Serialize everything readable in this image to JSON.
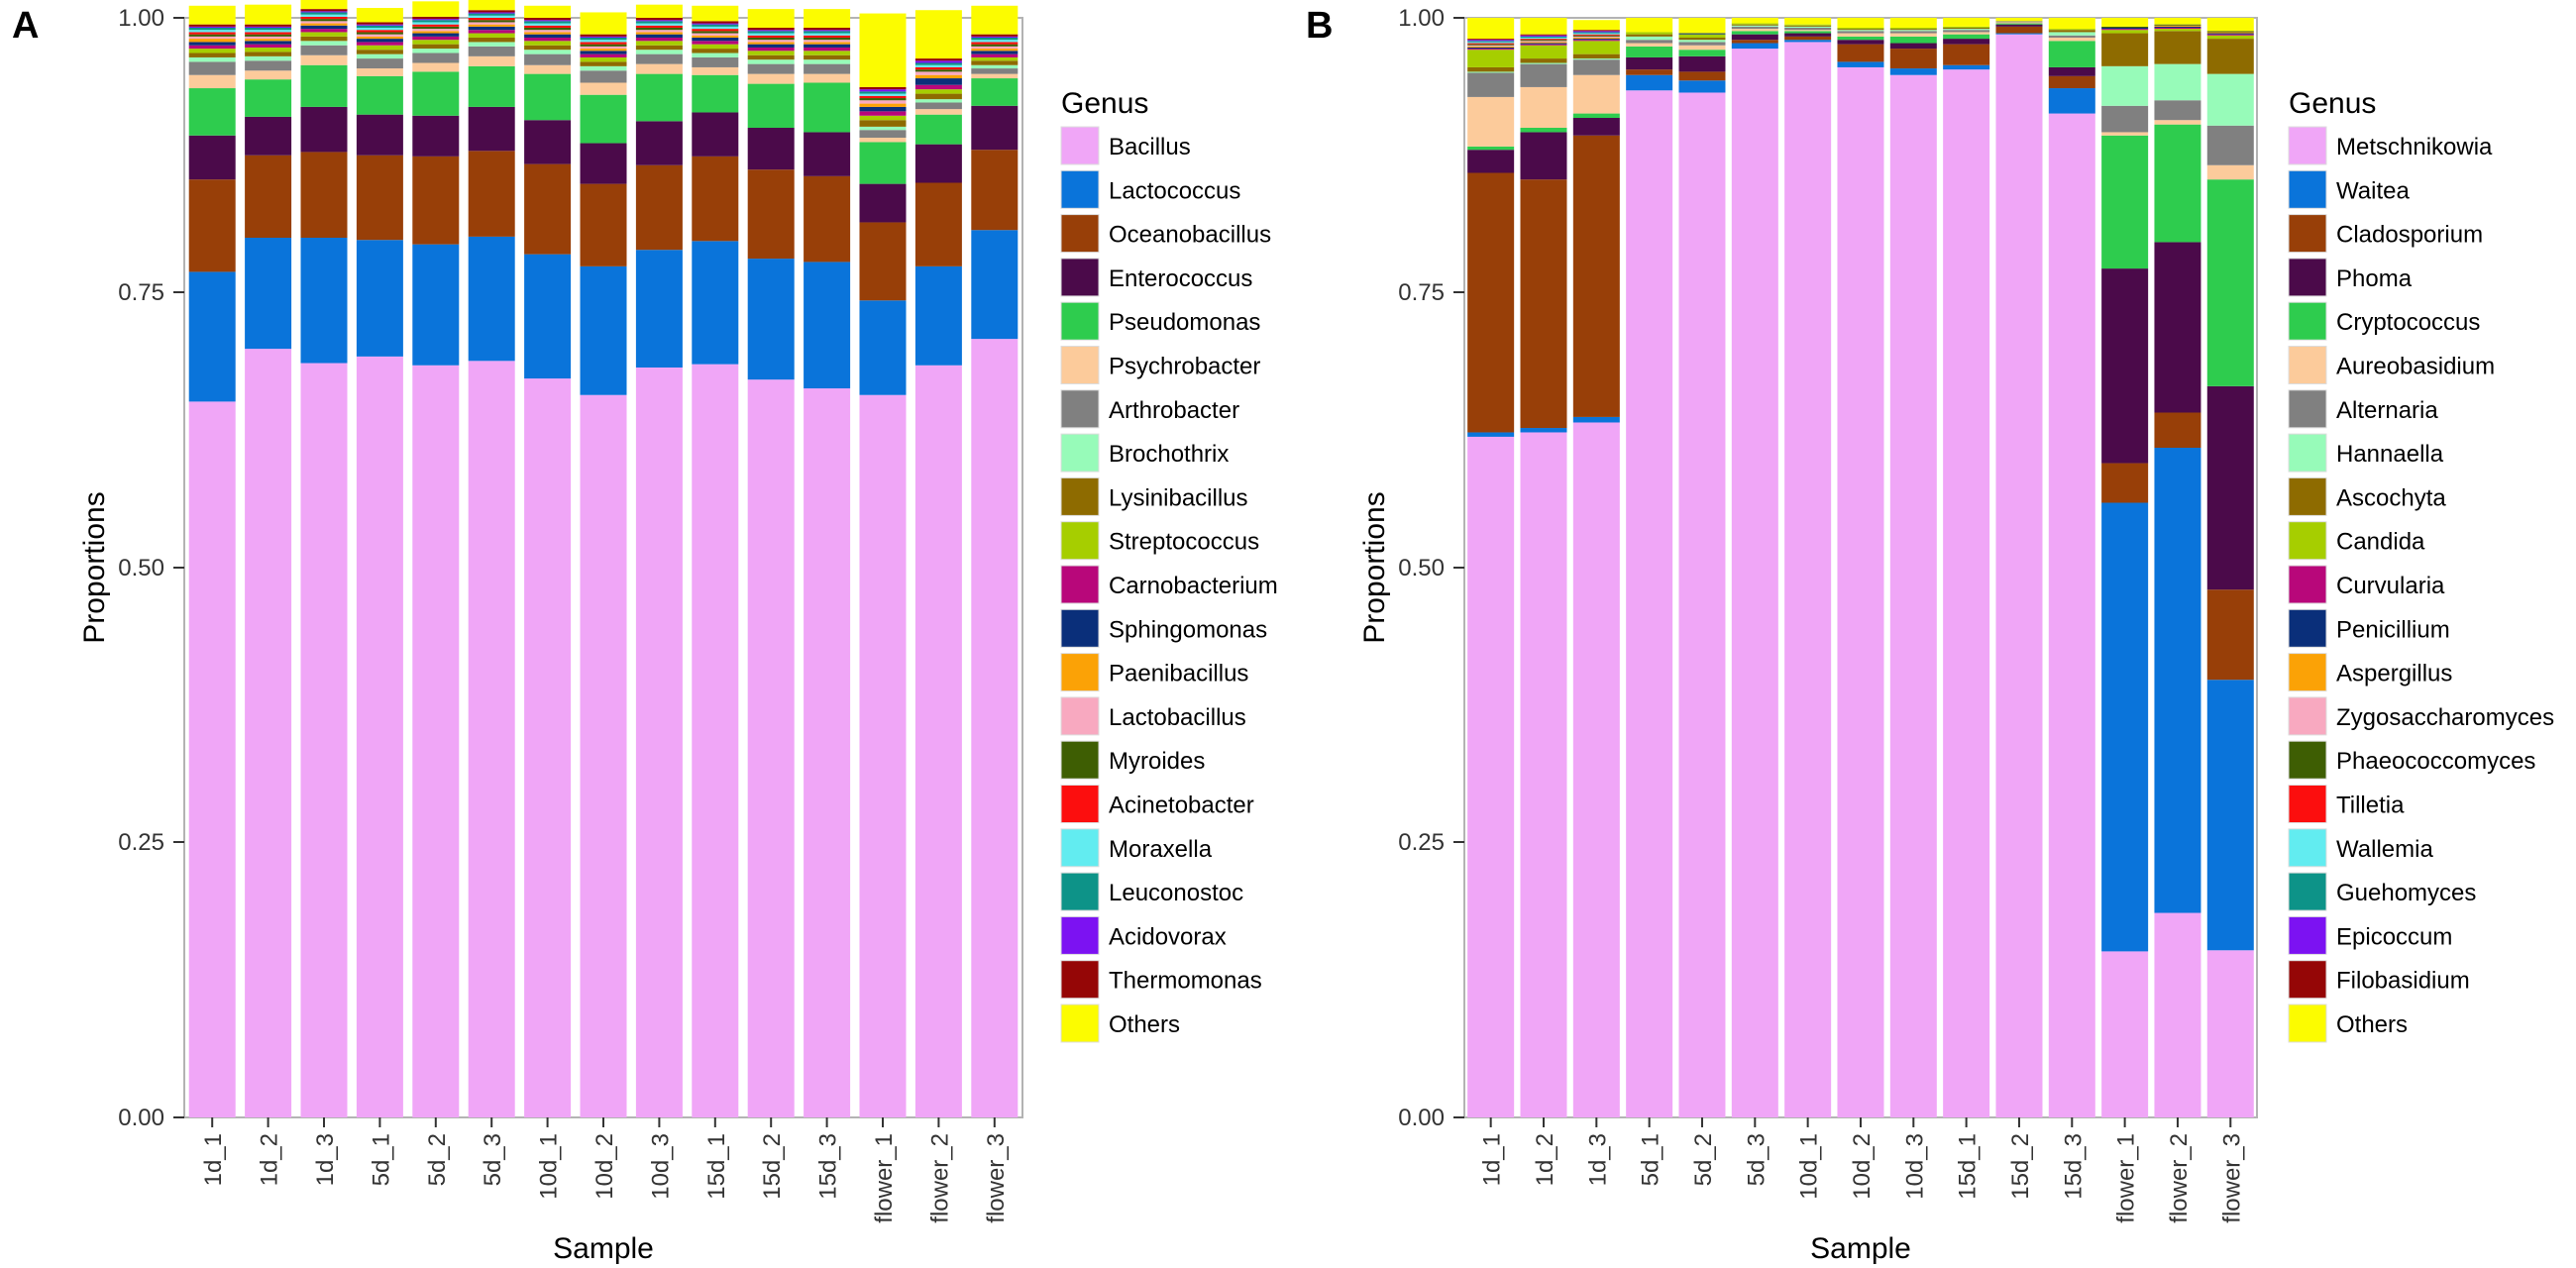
{
  "chart_data": [
    {
      "panel_label": "A",
      "type": "bar",
      "stacked": true,
      "title": "",
      "xlabel": "Sample",
      "ylabel": "Proportions",
      "ylim": [
        0,
        1
      ],
      "yticks": [
        "0.00",
        "0.25",
        "0.50",
        "0.75",
        "1.00"
      ],
      "legend_title": "Genus",
      "legend_position": "right",
      "categories": [
        "1d_1",
        "1d_2",
        "1d_3",
        "5d_1",
        "5d_2",
        "5d_3",
        "10d_1",
        "10d_2",
        "10d_3",
        "15d_1",
        "15d_2",
        "15d_3",
        "flower_1",
        "flower_2",
        "flower_3"
      ],
      "series": [
        {
          "name": "Bacillus",
          "color": "#F0A6F7",
          "values": [
            0.651,
            0.699,
            0.686,
            0.692,
            0.684,
            0.688,
            0.672,
            0.657,
            0.682,
            0.685,
            0.671,
            0.663,
            0.657,
            0.684,
            0.708
          ]
        },
        {
          "name": "Lactococcus",
          "color": "#0A74DA",
          "values": [
            0.118,
            0.101,
            0.114,
            0.106,
            0.11,
            0.113,
            0.113,
            0.117,
            0.107,
            0.112,
            0.11,
            0.115,
            0.086,
            0.09,
            0.099
          ]
        },
        {
          "name": "Oceanobacillus",
          "color": "#983F08",
          "values": [
            0.084,
            0.075,
            0.078,
            0.077,
            0.08,
            0.078,
            0.082,
            0.075,
            0.077,
            0.077,
            0.081,
            0.078,
            0.071,
            0.076,
            0.073
          ]
        },
        {
          "name": "Enterococcus",
          "color": "#4B0A4A",
          "values": [
            0.04,
            0.035,
            0.041,
            0.037,
            0.037,
            0.04,
            0.04,
            0.037,
            0.04,
            0.04,
            0.038,
            0.04,
            0.035,
            0.035,
            0.04
          ]
        },
        {
          "name": "Pseudomonas",
          "color": "#2ECC4E",
          "values": [
            0.043,
            0.034,
            0.038,
            0.035,
            0.04,
            0.037,
            0.042,
            0.044,
            0.043,
            0.034,
            0.04,
            0.045,
            0.038,
            0.027,
            0.025
          ]
        },
        {
          "name": "Psychrobacter",
          "color": "#FCCB9B",
          "values": [
            0.012,
            0.008,
            0.009,
            0.007,
            0.008,
            0.009,
            0.008,
            0.011,
            0.009,
            0.007,
            0.009,
            0.008,
            0.004,
            0.005,
            0.004
          ]
        },
        {
          "name": "Arthrobacter",
          "color": "#808080",
          "values": [
            0.012,
            0.009,
            0.009,
            0.009,
            0.009,
            0.009,
            0.01,
            0.011,
            0.009,
            0.009,
            0.009,
            0.009,
            0.007,
            0.006,
            0.005
          ]
        },
        {
          "name": "Brochothrix",
          "color": "#97FBB9",
          "values": [
            0.004,
            0.004,
            0.004,
            0.004,
            0.004,
            0.004,
            0.004,
            0.004,
            0.004,
            0.004,
            0.004,
            0.004,
            0.003,
            0.003,
            0.003
          ]
        },
        {
          "name": "Lysinibacillus",
          "color": "#8E6B00",
          "values": [
            0.004,
            0.004,
            0.004,
            0.004,
            0.004,
            0.004,
            0.004,
            0.004,
            0.004,
            0.004,
            0.004,
            0.004,
            0.006,
            0.005,
            0.004
          ]
        },
        {
          "name": "Streptococcus",
          "color": "#A6CE00",
          "values": [
            0.004,
            0.004,
            0.004,
            0.004,
            0.004,
            0.004,
            0.004,
            0.004,
            0.004,
            0.004,
            0.004,
            0.004,
            0.004,
            0.004,
            0.003
          ]
        },
        {
          "name": "Carnobacterium",
          "color": "#B8077A",
          "values": [
            0.003,
            0.003,
            0.003,
            0.003,
            0.003,
            0.003,
            0.003,
            0.003,
            0.003,
            0.003,
            0.003,
            0.003,
            0.004,
            0.004,
            0.003
          ]
        },
        {
          "name": "Sphingomonas",
          "color": "#0A2F7A",
          "values": [
            0.003,
            0.003,
            0.003,
            0.003,
            0.003,
            0.003,
            0.003,
            0.003,
            0.003,
            0.003,
            0.003,
            0.003,
            0.004,
            0.006,
            0.003
          ]
        },
        {
          "name": "Paenibacillus",
          "color": "#FBA206",
          "values": [
            0.003,
            0.002,
            0.002,
            0.002,
            0.002,
            0.002,
            0.002,
            0.002,
            0.002,
            0.002,
            0.002,
            0.002,
            0.003,
            0.003,
            0.002
          ]
        },
        {
          "name": "Lactobacillus",
          "color": "#F8A9C0",
          "values": [
            0.002,
            0.002,
            0.002,
            0.002,
            0.002,
            0.002,
            0.002,
            0.002,
            0.002,
            0.002,
            0.002,
            0.002,
            0.003,
            0.003,
            0.002
          ]
        },
        {
          "name": "Myroides",
          "color": "#3E5E03",
          "values": [
            0.002,
            0.002,
            0.002,
            0.002,
            0.002,
            0.002,
            0.002,
            0.002,
            0.002,
            0.002,
            0.002,
            0.002,
            0.002,
            0.002,
            0.002
          ]
        },
        {
          "name": "Acinetobacter",
          "color": "#FC0E0E",
          "values": [
            0.002,
            0.002,
            0.002,
            0.002,
            0.002,
            0.002,
            0.002,
            0.002,
            0.002,
            0.002,
            0.002,
            0.002,
            0.002,
            0.002,
            0.002
          ]
        },
        {
          "name": "Moraxella",
          "color": "#62ECF0",
          "values": [
            0.002,
            0.002,
            0.002,
            0.002,
            0.002,
            0.002,
            0.002,
            0.002,
            0.002,
            0.002,
            0.002,
            0.002,
            0.002,
            0.002,
            0.002
          ]
        },
        {
          "name": "Leuconostoc",
          "color": "#0D9388",
          "values": [
            0.002,
            0.002,
            0.002,
            0.002,
            0.002,
            0.002,
            0.002,
            0.002,
            0.002,
            0.002,
            0.002,
            0.002,
            0.002,
            0.002,
            0.002
          ]
        },
        {
          "name": "Acidovorax",
          "color": "#7C12F2",
          "values": [
            0.001,
            0.001,
            0.001,
            0.001,
            0.001,
            0.001,
            0.001,
            0.001,
            0.001,
            0.001,
            0.001,
            0.001,
            0.002,
            0.002,
            0.001
          ]
        },
        {
          "name": "Thermomonas",
          "color": "#950606",
          "values": [
            0.002,
            0.002,
            0.002,
            0.002,
            0.002,
            0.002,
            0.002,
            0.002,
            0.002,
            0.002,
            0.002,
            0.002,
            0.002,
            0.002,
            0.002
          ]
        },
        {
          "name": "Others",
          "color": "#FCFC00",
          "values": [
            0.017,
            0.018,
            0.013,
            0.013,
            0.014,
            0.014,
            0.011,
            0.02,
            0.012,
            0.014,
            0.017,
            0.017,
            0.067,
            0.044,
            0.026
          ]
        }
      ]
    },
    {
      "panel_label": "B",
      "type": "bar",
      "stacked": true,
      "title": "",
      "xlabel": "Sample",
      "ylabel": "Proportions",
      "ylim": [
        0,
        1
      ],
      "yticks": [
        "0.00",
        "0.25",
        "0.50",
        "0.75",
        "1.00"
      ],
      "legend_title": "Genus",
      "legend_position": "right",
      "categories": [
        "1d_1",
        "1d_2",
        "1d_3",
        "5d_1",
        "5d_2",
        "5d_3",
        "10d_1",
        "10d_2",
        "10d_3",
        "15d_1",
        "15d_2",
        "15d_3",
        "flower_1",
        "flower_2",
        "flower_3"
      ],
      "series": [
        {
          "name": "Metschnikowia",
          "color": "#F0A6F7",
          "values": [
            0.619,
            0.623,
            0.632,
            0.934,
            0.932,
            0.972,
            0.978,
            0.955,
            0.948,
            0.953,
            0.985,
            0.913,
            0.151,
            0.186,
            0.152
          ]
        },
        {
          "name": "Waitea",
          "color": "#0A74DA",
          "values": [
            0.004,
            0.004,
            0.005,
            0.014,
            0.011,
            0.005,
            0.002,
            0.005,
            0.006,
            0.004,
            0.001,
            0.023,
            0.408,
            0.423,
            0.246
          ]
        },
        {
          "name": "Cladosporium",
          "color": "#983F08",
          "values": [
            0.236,
            0.226,
            0.256,
            0.005,
            0.008,
            0.003,
            0.003,
            0.016,
            0.018,
            0.019,
            0.006,
            0.011,
            0.036,
            0.032,
            0.082
          ]
        },
        {
          "name": "Phoma",
          "color": "#4B0A4A",
          "values": [
            0.021,
            0.043,
            0.016,
            0.011,
            0.014,
            0.005,
            0.003,
            0.004,
            0.005,
            0.005,
            0.002,
            0.008,
            0.177,
            0.155,
            0.185
          ]
        },
        {
          "name": "Cryptococcus",
          "color": "#2ECC4E",
          "values": [
            0.003,
            0.004,
            0.004,
            0.01,
            0.006,
            0.003,
            0.002,
            0.003,
            0.006,
            0.004,
            0.001,
            0.024,
            0.121,
            0.107,
            0.188
          ]
        },
        {
          "name": "Aureobasidium",
          "color": "#FCCB9B",
          "values": [
            0.045,
            0.037,
            0.035,
            0.003,
            0.004,
            0.002,
            0.001,
            0.003,
            0.003,
            0.002,
            0.001,
            0.003,
            0.003,
            0.004,
            0.013
          ]
        },
        {
          "name": "Alternaria",
          "color": "#808080",
          "values": [
            0.022,
            0.021,
            0.014,
            0.003,
            0.003,
            0.002,
            0.002,
            0.002,
            0.002,
            0.002,
            0.001,
            0.002,
            0.024,
            0.018,
            0.036
          ]
        },
        {
          "name": "Hannaella",
          "color": "#97FBB9",
          "values": [
            0.001,
            0.001,
            0.001,
            0.003,
            0.002,
            0.001,
            0.001,
            0.001,
            0.001,
            0.001,
            0.0,
            0.003,
            0.036,
            0.033,
            0.047
          ]
        },
        {
          "name": "Ascochyta",
          "color": "#8E6B00",
          "values": [
            0.004,
            0.004,
            0.004,
            0.002,
            0.002,
            0.001,
            0.001,
            0.001,
            0.001,
            0.001,
            0.0,
            0.002,
            0.03,
            0.03,
            0.032
          ]
        },
        {
          "name": "Candida",
          "color": "#A6CE00",
          "values": [
            0.016,
            0.012,
            0.012,
            0.002,
            0.003,
            0.001,
            0.001,
            0.001,
            0.001,
            0.001,
            0.0,
            0.001,
            0.003,
            0.002,
            0.003
          ]
        },
        {
          "name": "Curvularia",
          "color": "#B8077A",
          "values": [
            0.001,
            0.001,
            0.001,
            0.0,
            0.0,
            0.0,
            0.0,
            0.0,
            0.0,
            0.0,
            0.0,
            0.0,
            0.001,
            0.001,
            0.001
          ]
        },
        {
          "name": "Penicillium",
          "color": "#0A2F7A",
          "values": [
            0.001,
            0.001,
            0.001,
            0.0,
            0.001,
            0.0,
            0.0,
            0.0,
            0.0,
            0.0,
            0.0,
            0.0,
            0.001,
            0.001,
            0.001
          ]
        },
        {
          "name": "Aspergillus",
          "color": "#FBA206",
          "values": [
            0.001,
            0.001,
            0.001,
            0.0,
            0.0,
            0.0,
            0.0,
            0.0,
            0.0,
            0.0,
            0.0,
            0.0,
            0.0,
            0.001,
            0.001
          ]
        },
        {
          "name": "Zygosaccharomyces",
          "color": "#F8A9C0",
          "values": [
            0.001,
            0.001,
            0.001,
            0.0,
            0.0,
            0.0,
            0.0,
            0.0,
            0.0,
            0.0,
            0.0,
            0.0,
            0.0,
            0.0,
            0.0
          ]
        },
        {
          "name": "Phaeococcomyces",
          "color": "#3E5E03",
          "values": [
            0.001,
            0.001,
            0.001,
            0.0,
            0.0,
            0.0,
            0.0,
            0.0,
            0.0,
            0.0,
            0.0,
            0.0,
            0.001,
            0.001,
            0.001
          ]
        },
        {
          "name": "Tilletia",
          "color": "#FC0E0E",
          "values": [
            0.001,
            0.001,
            0.001,
            0.0,
            0.0,
            0.0,
            0.0,
            0.0,
            0.0,
            0.0,
            0.0,
            0.0,
            0.0,
            0.0,
            0.0
          ]
        },
        {
          "name": "Wallemia",
          "color": "#62ECF0",
          "values": [
            0.001,
            0.001,
            0.001,
            0.0,
            0.0,
            0.0,
            0.0,
            0.0,
            0.0,
            0.0,
            0.0,
            0.0,
            0.0,
            0.0,
            0.0
          ]
        },
        {
          "name": "Guehomyces",
          "color": "#0D9388",
          "values": [
            0.001,
            0.001,
            0.001,
            0.0,
            0.0,
            0.0,
            0.0,
            0.0,
            0.0,
            0.0,
            0.0,
            0.0,
            0.0,
            0.0,
            0.0
          ]
        },
        {
          "name": "Epicoccum",
          "color": "#7C12F2",
          "values": [
            0.001,
            0.001,
            0.001,
            0.0,
            0.0,
            0.0,
            0.0,
            0.0,
            0.0,
            0.0,
            0.0,
            0.0,
            0.0,
            0.0,
            0.0
          ]
        },
        {
          "name": "Filobasidium",
          "color": "#950606",
          "values": [
            0.001,
            0.001,
            0.001,
            0.0,
            0.0,
            0.0,
            0.0,
            0.0,
            0.0,
            0.0,
            0.0,
            0.0,
            0.0,
            0.0,
            0.0
          ]
        },
        {
          "name": "Others",
          "color": "#FCFC00",
          "values": [
            0.019,
            0.015,
            0.009,
            0.013,
            0.014,
            0.005,
            0.006,
            0.009,
            0.009,
            0.008,
            0.003,
            0.01,
            0.008,
            0.006,
            0.012
          ]
        }
      ]
    }
  ]
}
